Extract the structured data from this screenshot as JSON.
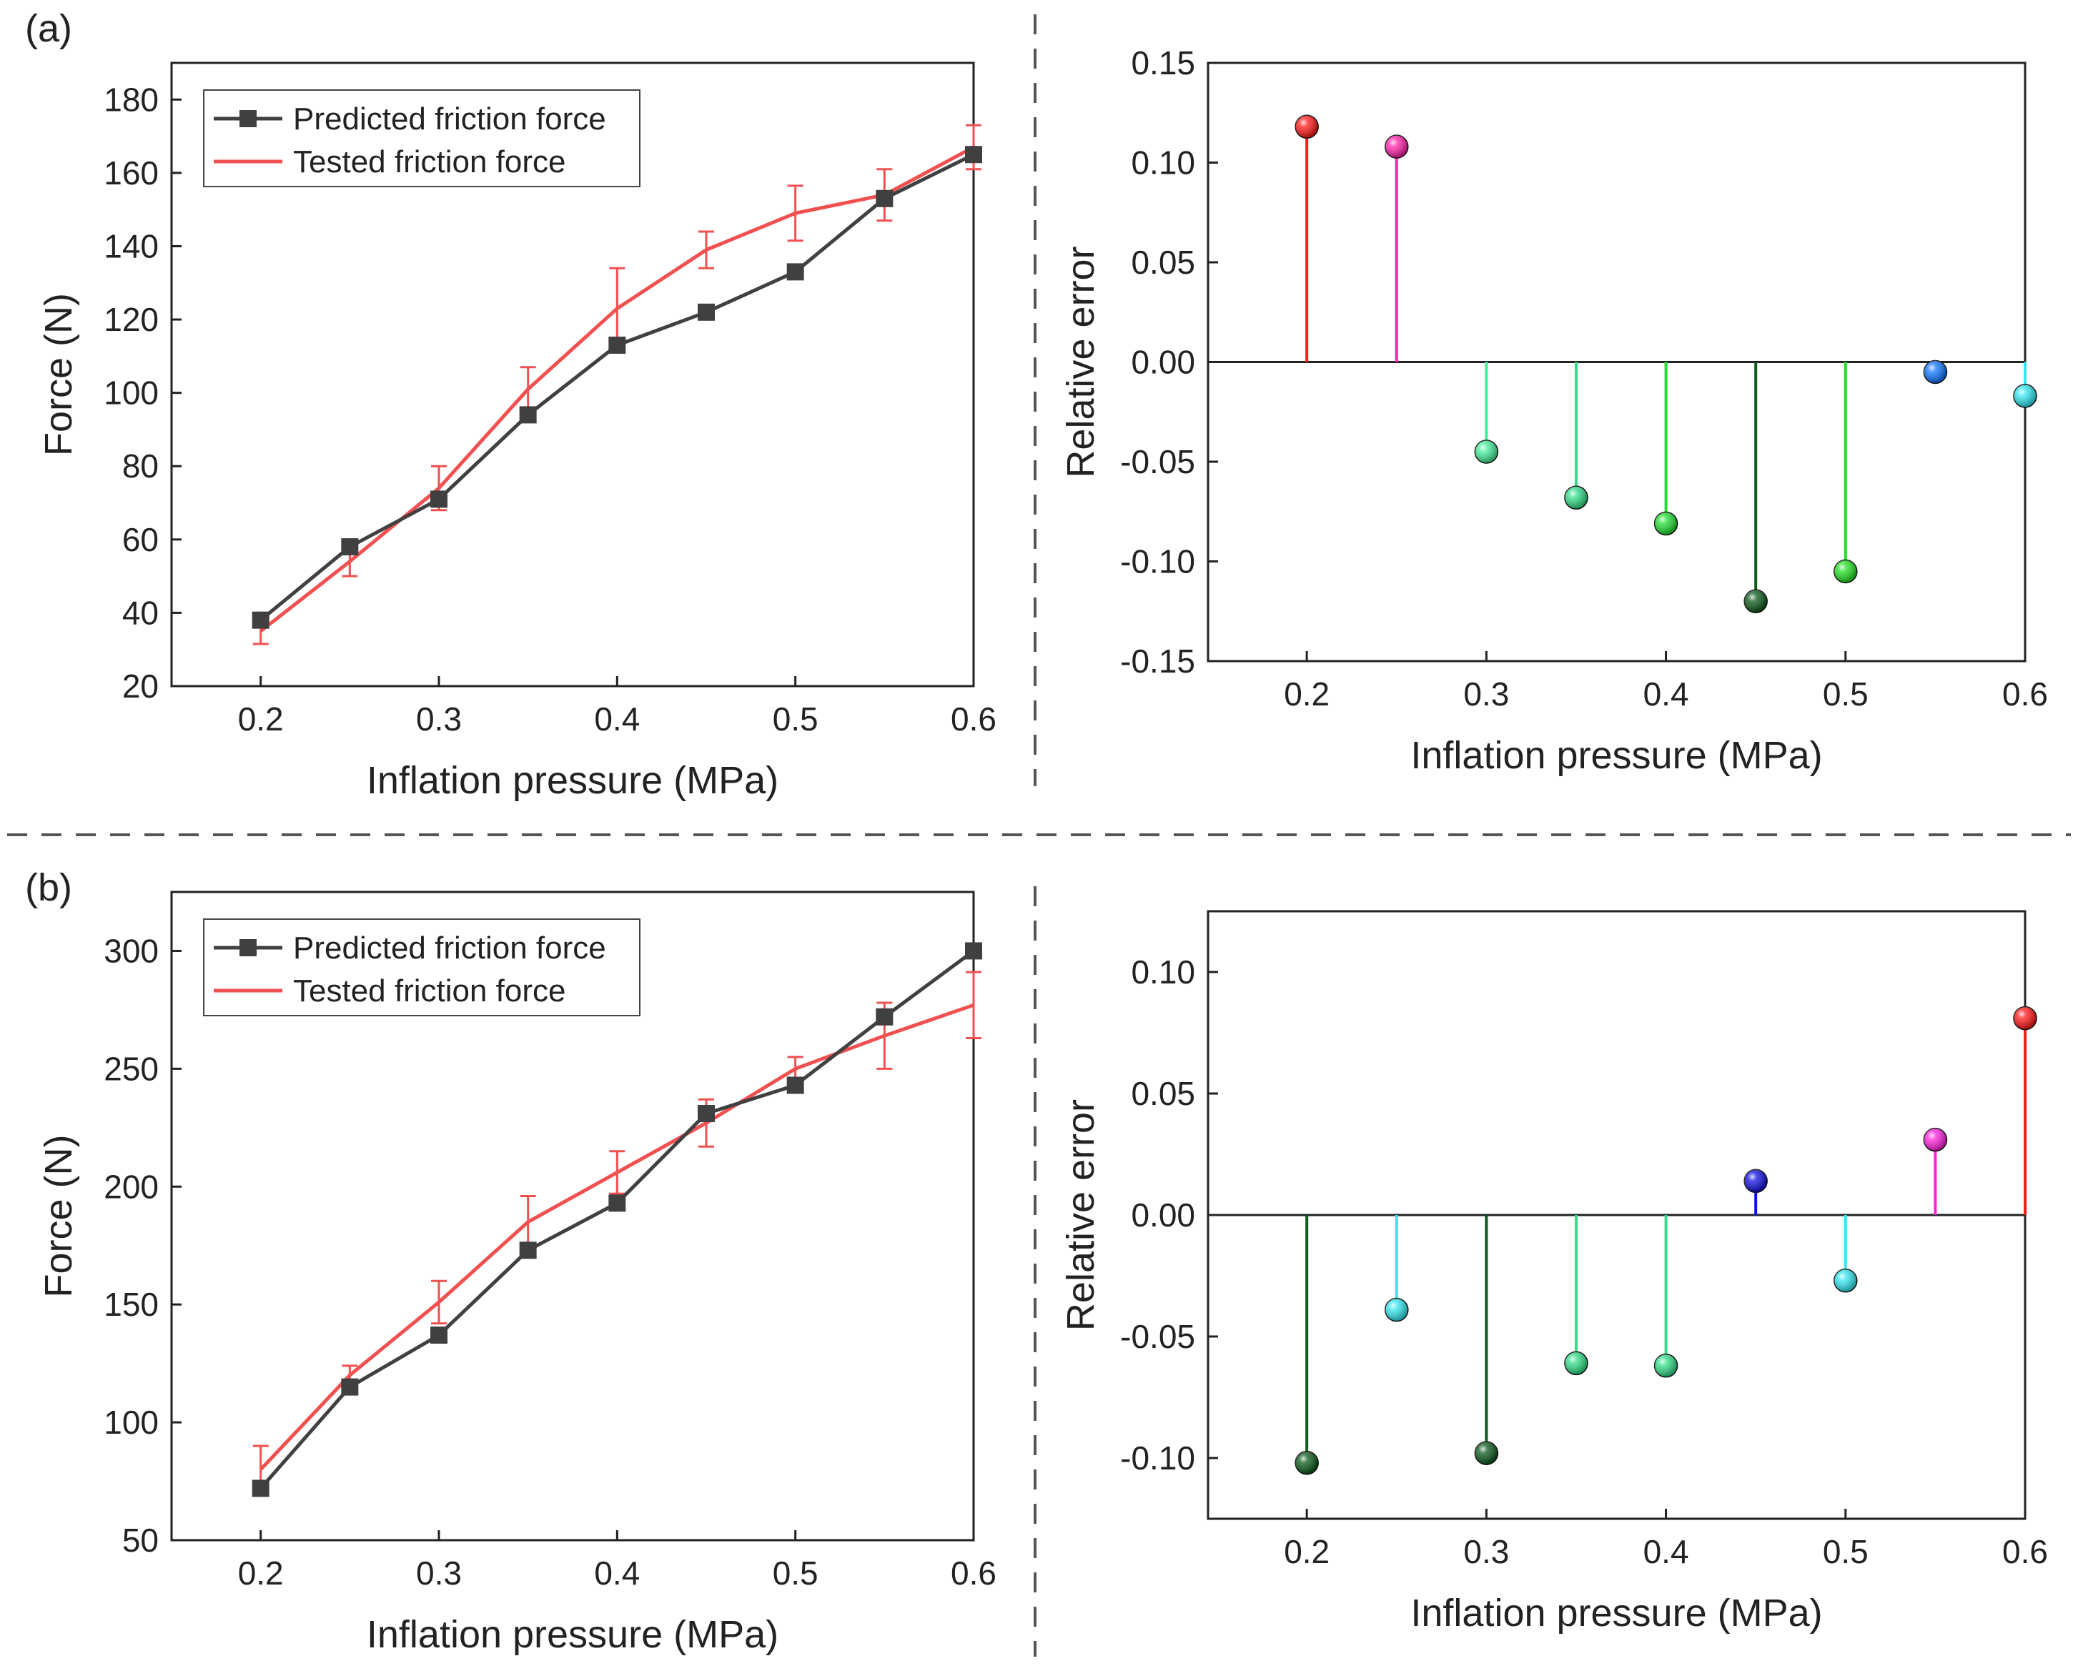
{
  "panel_labels": [
    "(a)",
    "(b)"
  ],
  "chart_data": [
    {
      "id": "a-force",
      "type": "line",
      "xlabel": "Inflation pressure (MPa)",
      "ylabel": "Force (N)",
      "xlim": [
        0.15,
        0.6
      ],
      "ylim": [
        20,
        190
      ],
      "xticks": [
        0.2,
        0.3,
        0.4,
        0.5,
        0.6
      ],
      "xtick_labels": [
        "0.2",
        "0.3",
        "0.4",
        "0.5",
        "0.6"
      ],
      "yticks": [
        20,
        40,
        60,
        80,
        100,
        120,
        140,
        160,
        180
      ],
      "ytick_labels": [
        "20",
        "40",
        "60",
        "80",
        "100",
        "120",
        "140",
        "160",
        "180"
      ],
      "legend": "top-left",
      "x": [
        0.2,
        0.25,
        0.3,
        0.35,
        0.4,
        0.45,
        0.5,
        0.55,
        0.6
      ],
      "series": [
        {
          "name": "Predicted friction force",
          "color": "#404040",
          "marker": "square",
          "values": [
            38,
            58,
            71,
            94,
            113,
            122,
            133,
            153,
            165
          ]
        },
        {
          "name": "Tested friction force",
          "color": "#f05050",
          "marker": "none",
          "values": [
            35,
            54,
            74,
            101,
            123,
            139,
            149,
            154,
            167
          ],
          "error": [
            3.5,
            4,
            6,
            6,
            11,
            5,
            7.5,
            7,
            6
          ]
        }
      ]
    },
    {
      "id": "a-error",
      "type": "stem",
      "xlabel": "Inflation pressure (MPa)",
      "ylabel": "Relative error",
      "xlim": [
        0.145,
        0.6
      ],
      "ylim": [
        -0.15,
        0.15
      ],
      "xticks": [
        0.2,
        0.3,
        0.4,
        0.5,
        0.6
      ],
      "xtick_labels": [
        "0.2",
        "0.3",
        "0.4",
        "0.5",
        "0.6"
      ],
      "yticks": [
        -0.15,
        -0.1,
        -0.05,
        0,
        0.05,
        0.1,
        0.15
      ],
      "ytick_labels": [
        "-0.15",
        "-0.10",
        "-0.05",
        "0.00",
        "0.05",
        "0.10",
        "0.15"
      ],
      "x": [
        0.2,
        0.25,
        0.3,
        0.35,
        0.4,
        0.45,
        0.5,
        0.55,
        0.6
      ],
      "values": [
        0.118,
        0.108,
        -0.045,
        -0.068,
        -0.081,
        -0.12,
        -0.105,
        -0.005,
        -0.017
      ],
      "colors": [
        "#ff1a1a",
        "#ff22aa",
        "#44ee99",
        "#33dd88",
        "#22dd33",
        "#0d5a1d",
        "#22e022",
        "#1177ff",
        "#33e6f0"
      ]
    },
    {
      "id": "b-force",
      "type": "line",
      "xlabel": "Inflation pressure (MPa)",
      "ylabel": "Force (N)",
      "xlim": [
        0.15,
        0.6
      ],
      "ylim": [
        50,
        325
      ],
      "xticks": [
        0.2,
        0.3,
        0.4,
        0.5,
        0.6
      ],
      "xtick_labels": [
        "0.2",
        "0.3",
        "0.4",
        "0.5",
        "0.6"
      ],
      "yticks": [
        50,
        100,
        150,
        200,
        250,
        300
      ],
      "ytick_labels": [
        "50",
        "100",
        "150",
        "200",
        "250",
        "300"
      ],
      "legend": "top-left",
      "x": [
        0.2,
        0.25,
        0.3,
        0.35,
        0.4,
        0.45,
        0.5,
        0.55,
        0.6
      ],
      "series": [
        {
          "name": "Predicted friction force",
          "color": "#404040",
          "marker": "square",
          "values": [
            72,
            115,
            137,
            173,
            193,
            231,
            243,
            272,
            300
          ]
        },
        {
          "name": "Tested friction force",
          "color": "#f05050",
          "marker": "none",
          "values": [
            80,
            120,
            151,
            185,
            206,
            227,
            250,
            264,
            277
          ],
          "error": [
            10,
            4,
            9,
            11,
            9,
            10,
            5,
            14,
            14
          ]
        }
      ]
    },
    {
      "id": "b-error",
      "type": "stem",
      "xlabel": "Inflation pressure (MPa)",
      "ylabel": "Relative error",
      "xlim": [
        0.145,
        0.6
      ],
      "ylim": [
        -0.125,
        0.125
      ],
      "xticks": [
        0.2,
        0.3,
        0.4,
        0.5,
        0.6
      ],
      "xtick_labels": [
        "0.2",
        "0.3",
        "0.4",
        "0.5",
        "0.6"
      ],
      "yticks": [
        -0.1,
        -0.05,
        0,
        0.05,
        0.1
      ],
      "ytick_labels": [
        "-0.10",
        "-0.05",
        "0.00",
        "0.05",
        "0.10"
      ],
      "x": [
        0.2,
        0.25,
        0.3,
        0.35,
        0.4,
        0.45,
        0.5,
        0.55,
        0.6
      ],
      "values": [
        -0.102,
        -0.039,
        -0.098,
        -0.061,
        -0.062,
        0.014,
        -0.027,
        0.031,
        0.081
      ],
      "colors": [
        "#0d5a1d",
        "#33e6f0",
        "#0d5a1d",
        "#33dd88",
        "#33dd88",
        "#1111dd",
        "#33e6f0",
        "#ff22dd",
        "#ff1a1a"
      ]
    }
  ]
}
